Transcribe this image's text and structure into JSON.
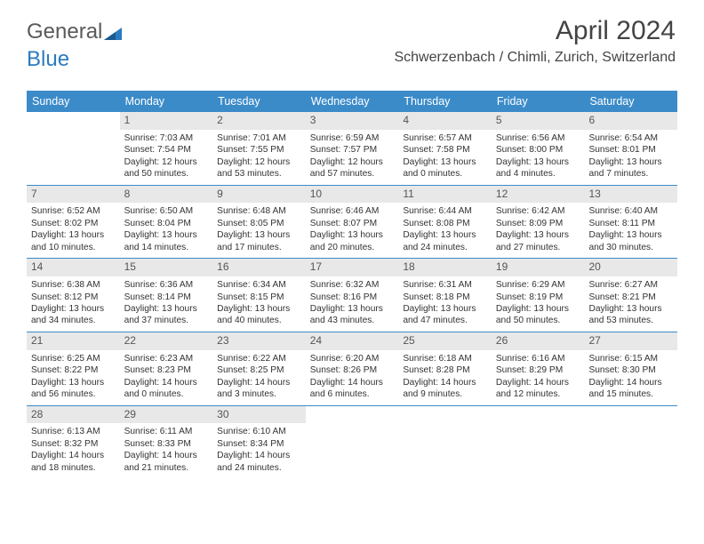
{
  "logo": {
    "part1": "General",
    "part2": "Blue"
  },
  "colors": {
    "header_blue": "#3b8bc9",
    "daynum_bg": "#e8e8e8",
    "text": "#333333",
    "logo_gray": "#5a5a5a",
    "logo_blue": "#2b7bbf"
  },
  "title": "April 2024",
  "location": "Schwerzenbach / Chimli, Zurich, Switzerland",
  "day_headers": [
    "Sunday",
    "Monday",
    "Tuesday",
    "Wednesday",
    "Thursday",
    "Friday",
    "Saturday"
  ],
  "weeks": [
    [
      null,
      {
        "n": "1",
        "sr": "Sunrise: 7:03 AM",
        "ss": "Sunset: 7:54 PM",
        "d1": "Daylight: 12 hours",
        "d2": "and 50 minutes."
      },
      {
        "n": "2",
        "sr": "Sunrise: 7:01 AM",
        "ss": "Sunset: 7:55 PM",
        "d1": "Daylight: 12 hours",
        "d2": "and 53 minutes."
      },
      {
        "n": "3",
        "sr": "Sunrise: 6:59 AM",
        "ss": "Sunset: 7:57 PM",
        "d1": "Daylight: 12 hours",
        "d2": "and 57 minutes."
      },
      {
        "n": "4",
        "sr": "Sunrise: 6:57 AM",
        "ss": "Sunset: 7:58 PM",
        "d1": "Daylight: 13 hours",
        "d2": "and 0 minutes."
      },
      {
        "n": "5",
        "sr": "Sunrise: 6:56 AM",
        "ss": "Sunset: 8:00 PM",
        "d1": "Daylight: 13 hours",
        "d2": "and 4 minutes."
      },
      {
        "n": "6",
        "sr": "Sunrise: 6:54 AM",
        "ss": "Sunset: 8:01 PM",
        "d1": "Daylight: 13 hours",
        "d2": "and 7 minutes."
      }
    ],
    [
      {
        "n": "7",
        "sr": "Sunrise: 6:52 AM",
        "ss": "Sunset: 8:02 PM",
        "d1": "Daylight: 13 hours",
        "d2": "and 10 minutes."
      },
      {
        "n": "8",
        "sr": "Sunrise: 6:50 AM",
        "ss": "Sunset: 8:04 PM",
        "d1": "Daylight: 13 hours",
        "d2": "and 14 minutes."
      },
      {
        "n": "9",
        "sr": "Sunrise: 6:48 AM",
        "ss": "Sunset: 8:05 PM",
        "d1": "Daylight: 13 hours",
        "d2": "and 17 minutes."
      },
      {
        "n": "10",
        "sr": "Sunrise: 6:46 AM",
        "ss": "Sunset: 8:07 PM",
        "d1": "Daylight: 13 hours",
        "d2": "and 20 minutes."
      },
      {
        "n": "11",
        "sr": "Sunrise: 6:44 AM",
        "ss": "Sunset: 8:08 PM",
        "d1": "Daylight: 13 hours",
        "d2": "and 24 minutes."
      },
      {
        "n": "12",
        "sr": "Sunrise: 6:42 AM",
        "ss": "Sunset: 8:09 PM",
        "d1": "Daylight: 13 hours",
        "d2": "and 27 minutes."
      },
      {
        "n": "13",
        "sr": "Sunrise: 6:40 AM",
        "ss": "Sunset: 8:11 PM",
        "d1": "Daylight: 13 hours",
        "d2": "and 30 minutes."
      }
    ],
    [
      {
        "n": "14",
        "sr": "Sunrise: 6:38 AM",
        "ss": "Sunset: 8:12 PM",
        "d1": "Daylight: 13 hours",
        "d2": "and 34 minutes."
      },
      {
        "n": "15",
        "sr": "Sunrise: 6:36 AM",
        "ss": "Sunset: 8:14 PM",
        "d1": "Daylight: 13 hours",
        "d2": "and 37 minutes."
      },
      {
        "n": "16",
        "sr": "Sunrise: 6:34 AM",
        "ss": "Sunset: 8:15 PM",
        "d1": "Daylight: 13 hours",
        "d2": "and 40 minutes."
      },
      {
        "n": "17",
        "sr": "Sunrise: 6:32 AM",
        "ss": "Sunset: 8:16 PM",
        "d1": "Daylight: 13 hours",
        "d2": "and 43 minutes."
      },
      {
        "n": "18",
        "sr": "Sunrise: 6:31 AM",
        "ss": "Sunset: 8:18 PM",
        "d1": "Daylight: 13 hours",
        "d2": "and 47 minutes."
      },
      {
        "n": "19",
        "sr": "Sunrise: 6:29 AM",
        "ss": "Sunset: 8:19 PM",
        "d1": "Daylight: 13 hours",
        "d2": "and 50 minutes."
      },
      {
        "n": "20",
        "sr": "Sunrise: 6:27 AM",
        "ss": "Sunset: 8:21 PM",
        "d1": "Daylight: 13 hours",
        "d2": "and 53 minutes."
      }
    ],
    [
      {
        "n": "21",
        "sr": "Sunrise: 6:25 AM",
        "ss": "Sunset: 8:22 PM",
        "d1": "Daylight: 13 hours",
        "d2": "and 56 minutes."
      },
      {
        "n": "22",
        "sr": "Sunrise: 6:23 AM",
        "ss": "Sunset: 8:23 PM",
        "d1": "Daylight: 14 hours",
        "d2": "and 0 minutes."
      },
      {
        "n": "23",
        "sr": "Sunrise: 6:22 AM",
        "ss": "Sunset: 8:25 PM",
        "d1": "Daylight: 14 hours",
        "d2": "and 3 minutes."
      },
      {
        "n": "24",
        "sr": "Sunrise: 6:20 AM",
        "ss": "Sunset: 8:26 PM",
        "d1": "Daylight: 14 hours",
        "d2": "and 6 minutes."
      },
      {
        "n": "25",
        "sr": "Sunrise: 6:18 AM",
        "ss": "Sunset: 8:28 PM",
        "d1": "Daylight: 14 hours",
        "d2": "and 9 minutes."
      },
      {
        "n": "26",
        "sr": "Sunrise: 6:16 AM",
        "ss": "Sunset: 8:29 PM",
        "d1": "Daylight: 14 hours",
        "d2": "and 12 minutes."
      },
      {
        "n": "27",
        "sr": "Sunrise: 6:15 AM",
        "ss": "Sunset: 8:30 PM",
        "d1": "Daylight: 14 hours",
        "d2": "and 15 minutes."
      }
    ],
    [
      {
        "n": "28",
        "sr": "Sunrise: 6:13 AM",
        "ss": "Sunset: 8:32 PM",
        "d1": "Daylight: 14 hours",
        "d2": "and 18 minutes."
      },
      {
        "n": "29",
        "sr": "Sunrise: 6:11 AM",
        "ss": "Sunset: 8:33 PM",
        "d1": "Daylight: 14 hours",
        "d2": "and 21 minutes."
      },
      {
        "n": "30",
        "sr": "Sunrise: 6:10 AM",
        "ss": "Sunset: 8:34 PM",
        "d1": "Daylight: 14 hours",
        "d2": "and 24 minutes."
      },
      null,
      null,
      null,
      null
    ]
  ]
}
